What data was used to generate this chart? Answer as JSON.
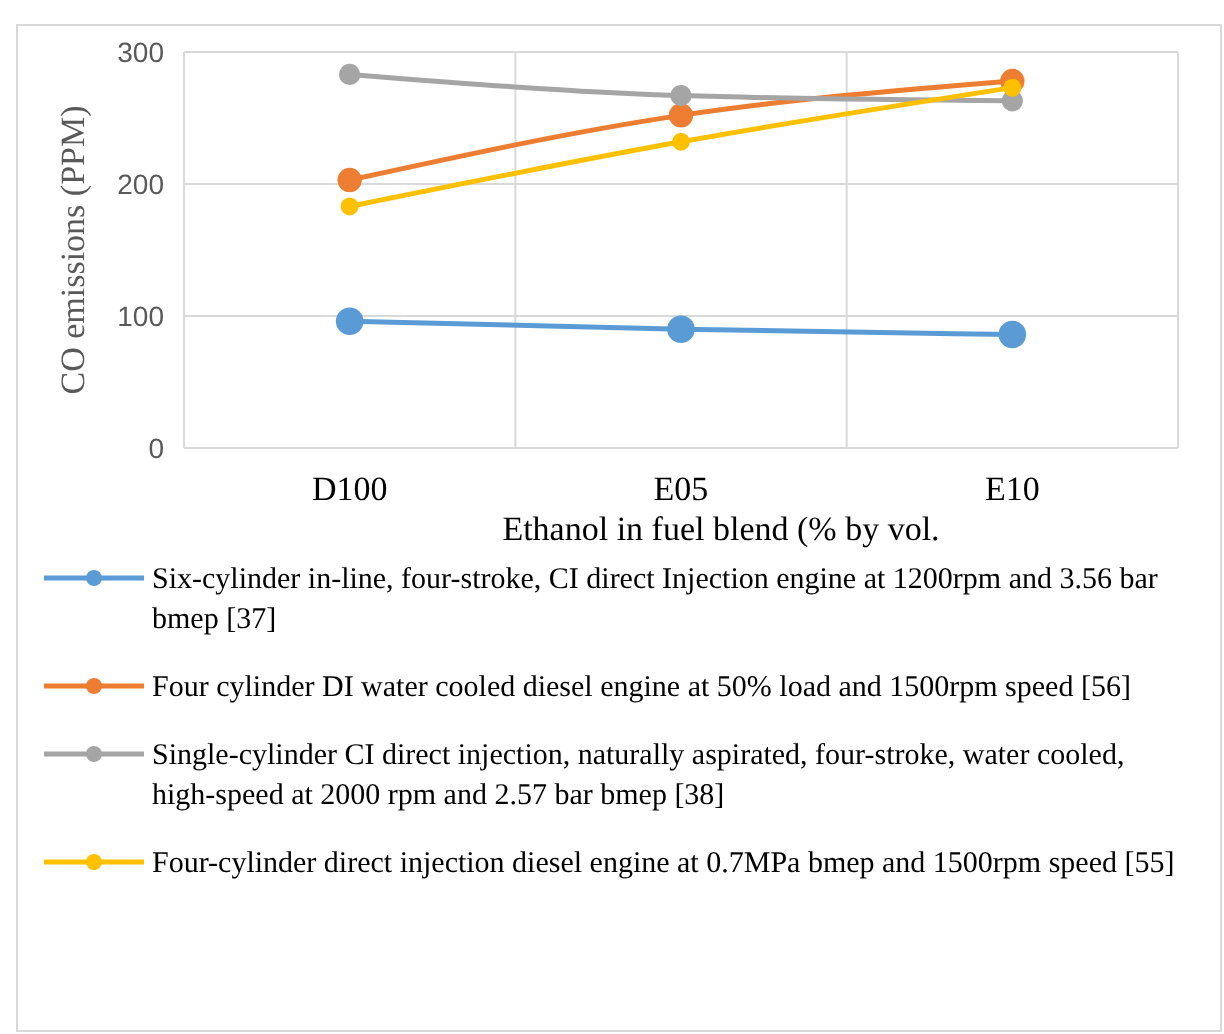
{
  "chart_data": {
    "type": "line",
    "xlabel": "Ethanol in fuel blend (% by vol.",
    "ylabel": "CO emissions (PPM)",
    "categories": [
      "D100",
      "E05",
      "E10"
    ],
    "ylim": [
      0,
      300
    ],
    "yticks": [
      0,
      100,
      200,
      300
    ],
    "grid": true,
    "legend": "bottom",
    "marker": "circle",
    "series": [
      {
        "name": "Six-cylinder in-line, four-stroke, CI direct Injection engine at 1200rpm and 3.56 bar bmep [37]",
        "color": "#5b9bd5",
        "values": [
          96,
          90,
          86
        ]
      },
      {
        "name": "Four cylinder DI water cooled diesel engine at 50% load and 1500rpm speed [56]",
        "color": "#ed7d31",
        "values": [
          203,
          252,
          278
        ]
      },
      {
        "name": "Single-cylinder CI direct injection, naturally aspirated, four-stroke, water cooled, high-speed at 2000 rpm and 2.57 bar bmep [38]",
        "color": "#a5a5a5",
        "values": [
          283,
          267,
          263
        ]
      },
      {
        "name": "Four-cylinder direct injection diesel engine at  0.7MPa bmep and 1500rpm speed [55]",
        "color": "#ffc000",
        "values": [
          183,
          232,
          273
        ]
      }
    ]
  }
}
